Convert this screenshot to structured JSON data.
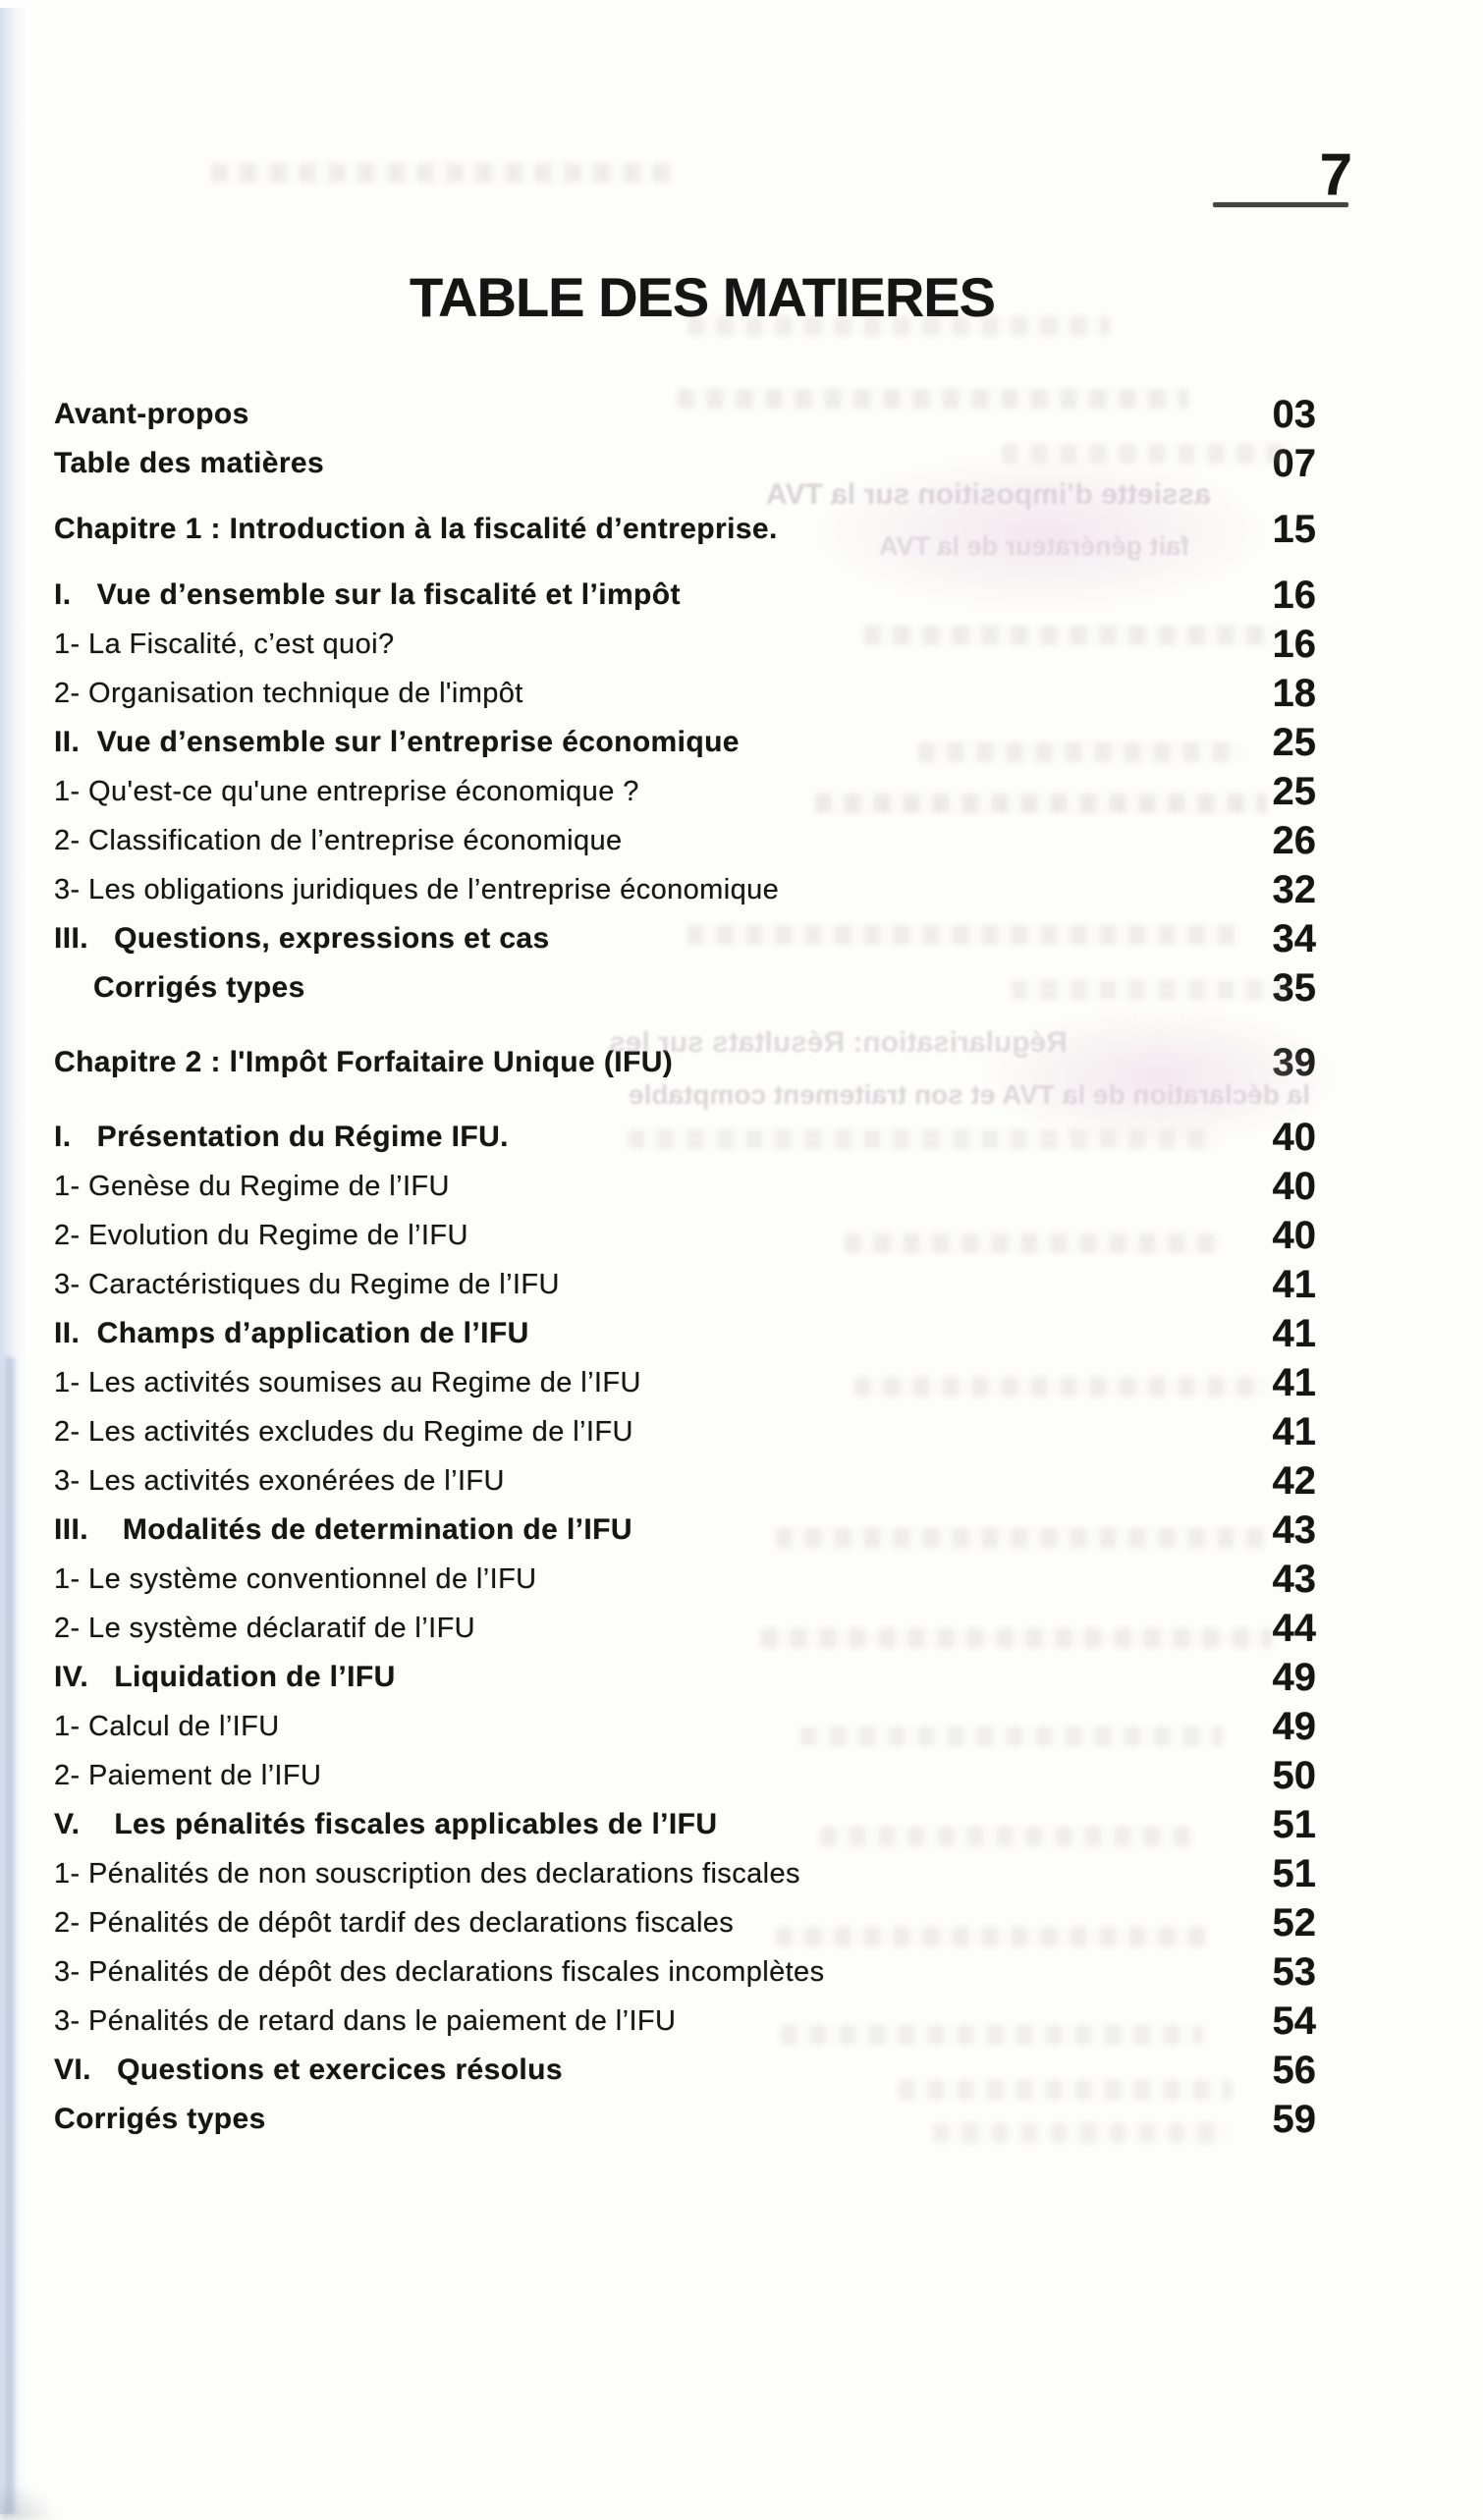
{
  "page": {
    "number": "7",
    "title": "TABLE DES MATIERES"
  },
  "toc": {
    "rows": [
      {
        "label": "Avant-propos",
        "page": "03",
        "bold": true
      },
      {
        "label": "Table des matières",
        "page": "07",
        "bold": true
      },
      {
        "label": "Chapitre 1 : Introduction à la fiscalité d’entreprise.",
        "page": "15",
        "bold": true,
        "gap": "m"
      },
      {
        "label": "I.   Vue d’ensemble sur la fiscalité et l’impôt",
        "page": "16",
        "bold": true,
        "gap": "m"
      },
      {
        "label": "1- La Fiscalité, c’est quoi?",
        "page": "16"
      },
      {
        "label": "2- Organisation technique de l'impôt",
        "page": "18"
      },
      {
        "label": "II.  Vue d’ensemble sur l’entreprise économique",
        "page": "25",
        "bold": true
      },
      {
        "label": "1- Qu'est-ce qu'une entreprise économique ?",
        "page": "25"
      },
      {
        "label": "2- Classification de l’entreprise économique",
        "page": "26"
      },
      {
        "label": "3- Les obligations juridiques de l’entreprise économique",
        "page": "32"
      },
      {
        "label": "III.   Questions, expressions et cas",
        "page": "34",
        "bold": true
      },
      {
        "label": "Corrigés types",
        "page": "35",
        "bold": true,
        "indent": true
      },
      {
        "label": "Chapitre 2 : l'Impôt Forfaitaire Unique (IFU)",
        "page": "39",
        "bold": true,
        "gap": "l"
      },
      {
        "label": "I.   Présentation du Régime IFU.",
        "page": "40",
        "bold": true,
        "gap": "l"
      },
      {
        "label": "1- Genèse du Regime de l’IFU",
        "page": "40"
      },
      {
        "label": "2- Evolution du Regime de l’IFU",
        "page": "40"
      },
      {
        "label": "3- Caractéristiques du Regime de l’IFU",
        "page": "41"
      },
      {
        "label": "II.  Champs d’application de l’IFU",
        "page": "41",
        "bold": true
      },
      {
        "label": "1- Les activités soumises au Regime de l’IFU",
        "page": "41"
      },
      {
        "label": "2- Les activités excludes du Regime de l’IFU",
        "page": "41"
      },
      {
        "label": "3- Les activités exonérées de l’IFU",
        "page": "42"
      },
      {
        "label": "III.    Modalités de determination de l’IFU",
        "page": "43",
        "bold": true
      },
      {
        "label": "1- Le système conventionnel de l’IFU",
        "page": "43"
      },
      {
        "label": "2- Le système déclaratif de l’IFU",
        "page": "44"
      },
      {
        "label": "IV.   Liquidation de l’IFU",
        "page": "49",
        "bold": true
      },
      {
        "label": "1- Calcul de l’IFU",
        "page": "49"
      },
      {
        "label": "2- Paiement de l’IFU",
        "page": "50"
      },
      {
        "label": "V.    Les pénalités fiscales applicables de l’IFU",
        "page": "51",
        "bold": true
      },
      {
        "label": "1- Pénalités de non souscription des declarations fiscales",
        "page": "51"
      },
      {
        "label": "2- Pénalités de dépôt tardif des declarations fiscales",
        "page": "52"
      },
      {
        "label": "3- Pénalités de dépôt des declarations fiscales incomplètes",
        "page": "53"
      },
      {
        "label": "3- Pénalités de retard dans le paiement de l’IFU",
        "page": "54"
      },
      {
        "label": "VI.   Questions et exercices résolus",
        "page": "56",
        "bold": true
      },
      {
        "label": "Corrigés types",
        "page": "59",
        "bold": true
      }
    ]
  },
  "scan_artifacts": {
    "bleed_through_lines": [
      {
        "text": "assiette d’imposition sur la TVA"
      },
      {
        "text": "fait générateur de la TVA"
      },
      {
        "text": "Régularisation: Résultats sur les"
      },
      {
        "text": "la déclaration de la TVA et son traitement comptable"
      }
    ]
  }
}
